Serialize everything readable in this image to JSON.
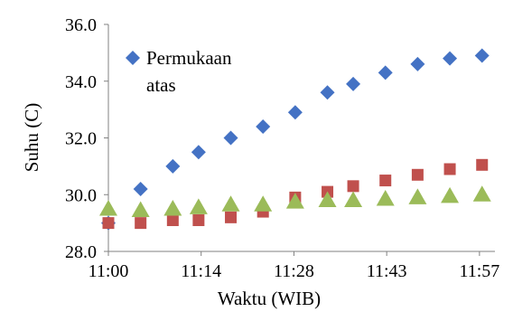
{
  "chart_data": {
    "type": "scatter",
    "title": "",
    "xlabel": "Waktu (WIB)",
    "ylabel": "Suhu (C)",
    "ylim": [
      28.0,
      36.0
    ],
    "yticks": [
      "28.0",
      "30.0",
      "32.0",
      "34.0",
      "36.0"
    ],
    "ytick_values": [
      28,
      30,
      32,
      34,
      36
    ],
    "xlim": [
      "11:00",
      "12:00"
    ],
    "xticks": [
      "11:00",
      "11:14",
      "11:28",
      "11:43",
      "11:57"
    ],
    "xtick_minutes": [
      0,
      14.4,
      28.8,
      43.2,
      57.6
    ],
    "grid": false,
    "legend_position": "top-left",
    "x": [
      "11:00",
      "11:05",
      "11:10",
      "11:14",
      "11:19",
      "11:24",
      "11:29",
      "11:34",
      "11:38",
      "11:43",
      "11:48",
      "11:53",
      "11:58"
    ],
    "series": [
      {
        "name": "Permukaan atas",
        "legend_lines": [
          "Permukaan",
          "atas"
        ],
        "marker": "diamond",
        "color": "#4472C4",
        "values": [
          29.0,
          30.2,
          31.0,
          31.5,
          32.0,
          32.4,
          32.9,
          33.6,
          33.9,
          34.3,
          34.6,
          34.8,
          34.9
        ]
      },
      {
        "name": "",
        "marker": "square",
        "color": "#C0504D",
        "values": [
          29.0,
          29.0,
          29.1,
          29.1,
          29.2,
          29.4,
          29.9,
          30.1,
          30.3,
          30.5,
          30.7,
          30.9,
          31.05
        ]
      },
      {
        "name": "",
        "marker": "triangle",
        "color": "#9BBB59",
        "values": [
          29.5,
          29.45,
          29.5,
          29.55,
          29.65,
          29.65,
          29.75,
          29.8,
          29.8,
          29.85,
          29.9,
          29.95,
          30.0
        ]
      }
    ]
  }
}
